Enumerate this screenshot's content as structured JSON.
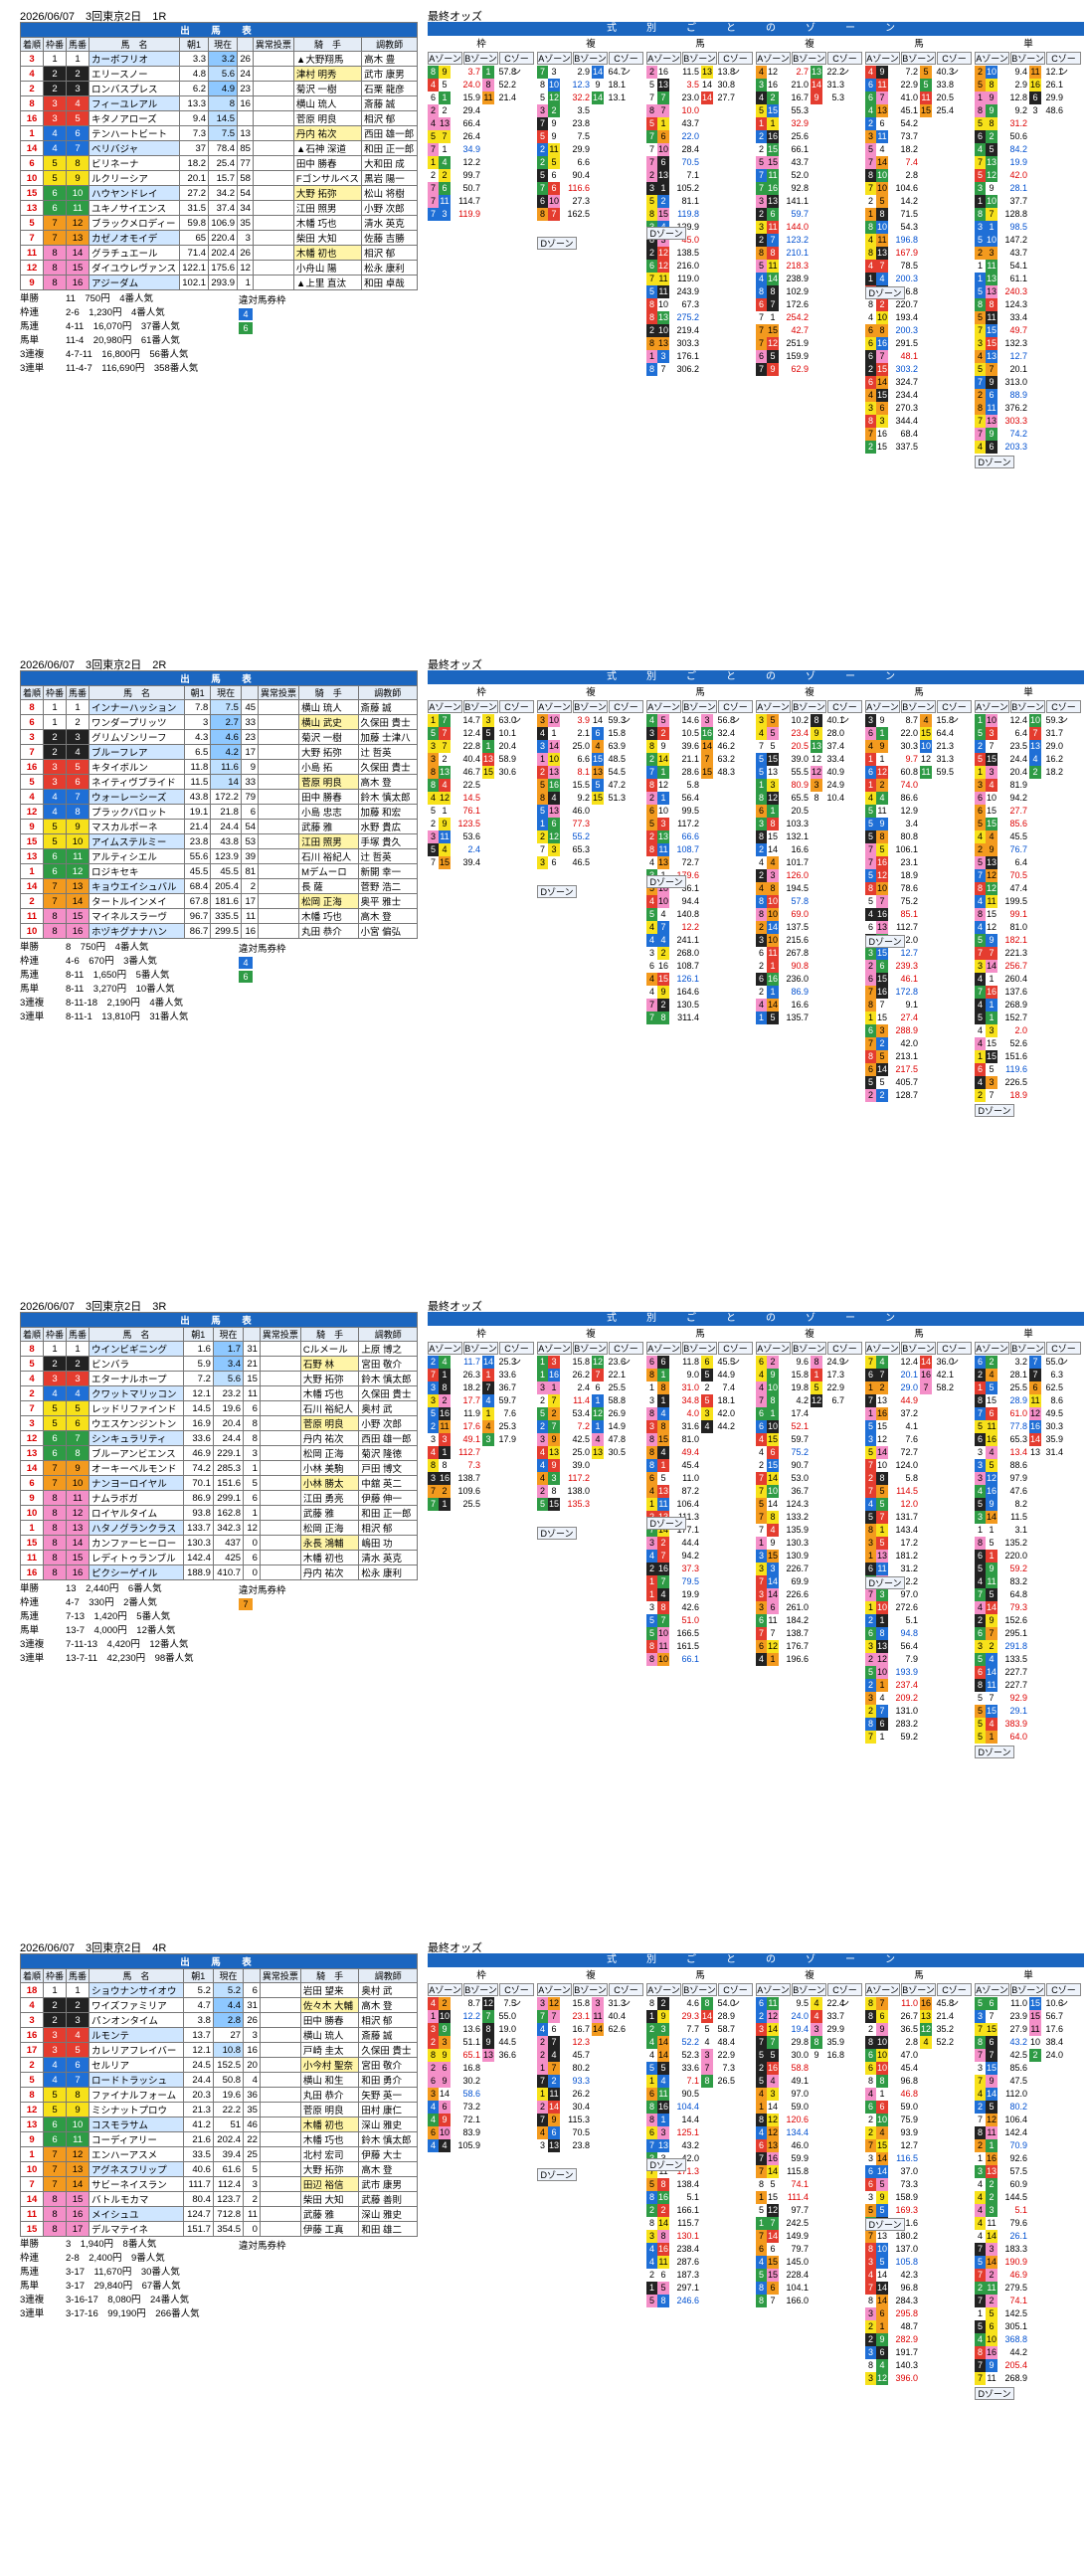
{
  "date_course": "2026/06/07　3回東京2日",
  "odds_label": "最終オッズ",
  "zone_title": "式　別　ご　と　の　ゾ　ー　ン",
  "table_title": "出　馬　表",
  "headers": {
    "arrival": "着順",
    "waku": "枠番",
    "uma": "馬番",
    "horse": "馬　名",
    "odds": "単勝オッズ",
    "first": "朝1",
    "now": "現在",
    "move": "異常投票",
    "jockey": "騎　手",
    "trainer": "調教師"
  },
  "zone_groups": [
    "枠",
    "複",
    "馬",
    "複",
    "馬",
    "単"
  ],
  "zones": {
    "a": "Aゾーン",
    "b": "Bゾーン",
    "c": "Cゾーン",
    "d": "Dゾーン"
  },
  "labels": {
    "tansho": "単勝",
    "wakuren": "枠連",
    "umaren": "馬連",
    "umatan": "馬単",
    "sanrenpuku": "3連複",
    "sanrentan": "3連単",
    "taisen": "違対馬券枠"
  },
  "races": [
    {
      "id": "1R",
      "race_no": "1R",
      "rows": [
        {
          "arr": "3",
          "w": 1,
          "u": "1",
          "name": "カーボフリオ",
          "first": "3.3",
          "now": "3.2",
          "pop": "26",
          "jockey": "▲大野翔馬",
          "trainer": "高木 豊"
        },
        {
          "arr": "4",
          "w": 2,
          "u": "2",
          "name": "エリースノー",
          "first": "4.8",
          "now": "5.6",
          "pop": "24",
          "jockey": "津村 明秀",
          "trainer": "武市 康男"
        },
        {
          "arr": "2",
          "w": 2,
          "u": "3",
          "name": "ロンバスプレス",
          "first": "6.2",
          "now": "4.9",
          "pop": "23",
          "jockey": "菊沢 一樹",
          "trainer": "石栗 龍彦"
        },
        {
          "arr": "8",
          "w": 3,
          "u": "4",
          "name": "フィーユレアル",
          "first": "13.3",
          "now": "8",
          "pop": "16",
          "jockey": "横山 琉人",
          "trainer": "斎藤 誠"
        },
        {
          "arr": "16",
          "w": 3,
          "u": "5",
          "name": "キタノアローズ",
          "first": "9.4",
          "now": "14.5",
          "pop": "",
          "jockey": "菅原 明良",
          "trainer": "相沢 郁"
        },
        {
          "arr": "1",
          "w": 4,
          "u": "6",
          "name": "テンハートビート",
          "first": "7.3",
          "now": "7.5",
          "pop": "13",
          "jockey": "丹内 祐次",
          "trainer": "西田 雄一郎"
        },
        {
          "arr": "14",
          "w": 4,
          "u": "7",
          "name": "ベリバジャ",
          "first": "37",
          "now": "78.4",
          "pop": "85",
          "jockey": "▲石神 深道",
          "trainer": "和田 正一郎"
        },
        {
          "arr": "6",
          "w": 5,
          "u": "8",
          "name": "ビリネーナ",
          "first": "18.2",
          "now": "25.4",
          "pop": "77",
          "jockey": "田中 勝春",
          "trainer": "大和田 成"
        },
        {
          "arr": "10",
          "w": 5,
          "u": "9",
          "name": "ルクリーシア",
          "first": "20.1",
          "now": "15.7",
          "pop": "58",
          "jockey": "Fゴンサルベス",
          "trainer": "黒岩 陽一"
        },
        {
          "arr": "15",
          "w": 6,
          "u": "10",
          "name": "ハウヤンドレイ",
          "first": "27.2",
          "now": "34.2",
          "pop": "54",
          "jockey": "大野 拓弥",
          "trainer": "松山 将樹"
        },
        {
          "arr": "13",
          "w": 6,
          "u": "11",
          "name": "ユキノサイエンス",
          "first": "31.5",
          "now": "37.4",
          "pop": "34",
          "jockey": "江田 照男",
          "trainer": "小野 次郎"
        },
        {
          "arr": "5",
          "w": 7,
          "u": "12",
          "name": "ブラックメロディー",
          "first": "59.8",
          "now": "106.9",
          "pop": "35",
          "jockey": "木幡 巧也",
          "trainer": "清水 英克"
        },
        {
          "arr": "7",
          "w": 7,
          "u": "13",
          "name": "カゼノオモイデ",
          "first": "65",
          "now": "220.4",
          "pop": "3",
          "jockey": "柴田 大知",
          "trainer": "佐藤 吉勝"
        },
        {
          "arr": "11",
          "w": 8,
          "u": "14",
          "name": "グラチュエール",
          "first": "71.4",
          "now": "202.4",
          "pop": "26",
          "jockey": "木幡 初也",
          "trainer": "相沢 郁"
        },
        {
          "arr": "12",
          "w": 8,
          "u": "15",
          "name": "ダイユウレヴァンス",
          "first": "122.1",
          "now": "175.6",
          "pop": "12",
          "jockey": "小舟山 陽",
          "trainer": "松永 康利"
        },
        {
          "arr": "9",
          "w": 8,
          "u": "16",
          "name": "アジーダム",
          "first": "102.1",
          "now": "293.9",
          "pop": "1",
          "jockey": "▲上里 直汰",
          "trainer": "和田 卓哉"
        }
      ],
      "results": [
        {
          "k": "単勝",
          "v": "11　750円　4番人気"
        },
        {
          "k": "枠連",
          "v": "2-6　1,230円　4番人気"
        },
        {
          "k": "馬連",
          "v": "4-11　16,070円　37番人気"
        },
        {
          "k": "馬単",
          "v": "11-4　20,980円　61番人気"
        },
        {
          "k": "3連複",
          "v": "4-7-11　16,800円　56番人気"
        },
        {
          "k": "3連単",
          "v": "11-4-7　116,690円　358番人気"
        }
      ],
      "taisen": [
        "4",
        "6"
      ]
    },
    {
      "id": "2R",
      "race_no": "2R",
      "rows": [
        {
          "arr": "8",
          "w": 1,
          "u": "1",
          "name": "インナーハッション",
          "first": "7.8",
          "now": "7.5",
          "pop": "45",
          "jockey": "横山 琉人",
          "trainer": "斎藤 誠"
        },
        {
          "arr": "6",
          "w": 1,
          "u": "2",
          "name": "ワンダープリッツ",
          "first": "3",
          "now": "2.7",
          "pop": "33",
          "jockey": "横山 武史",
          "trainer": "久保田 貴士"
        },
        {
          "arr": "3",
          "w": 2,
          "u": "3",
          "name": "グリムゾンリーフ",
          "first": "4.3",
          "now": "4.6",
          "pop": "23",
          "jockey": "菊沢 一樹",
          "trainer": "加藤 士津八"
        },
        {
          "arr": "7",
          "w": 2,
          "u": "4",
          "name": "ブルーフレア",
          "first": "6.5",
          "now": "4.2",
          "pop": "17",
          "jockey": "大野 拓弥",
          "trainer": "辻 哲英"
        },
        {
          "arr": "16",
          "w": 3,
          "u": "5",
          "name": "キタイボルン",
          "first": "11.8",
          "now": "11.6",
          "pop": "9",
          "jockey": "小島 拓",
          "trainer": "久保田 貴士"
        },
        {
          "arr": "5",
          "w": 3,
          "u": "6",
          "name": "ネイティヴブライド",
          "first": "11.5",
          "now": "14",
          "pop": "33",
          "jockey": "菅原 明良",
          "trainer": "高木 登"
        },
        {
          "arr": "4",
          "w": 4,
          "u": "7",
          "name": "ウォーレーシーズ",
          "first": "43.8",
          "now": "172.2",
          "pop": "79",
          "jockey": "田中 勝春",
          "trainer": "鈴木 慎太郎"
        },
        {
          "arr": "12",
          "w": 4,
          "u": "8",
          "name": "プラックバロット",
          "first": "19.1",
          "now": "21.8",
          "pop": "6",
          "jockey": "小島 忠志",
          "trainer": "加藤 和宏"
        },
        {
          "arr": "9",
          "w": 5,
          "u": "9",
          "name": "マスカルポーネ",
          "first": "21.4",
          "now": "24.4",
          "pop": "54",
          "jockey": "武藤 雅",
          "trainer": "水野 貴広"
        },
        {
          "arr": "15",
          "w": 5,
          "u": "10",
          "name": "アイムステルミー",
          "first": "23.8",
          "now": "43.8",
          "pop": "53",
          "jockey": "江田 照男",
          "trainer": "手塚 貴久"
        },
        {
          "arr": "13",
          "w": 6,
          "u": "11",
          "name": "アルティシエル",
          "first": "55.6",
          "now": "123.9",
          "pop": "39",
          "jockey": "石川 裕紀人",
          "trainer": "辻 哲英"
        },
        {
          "arr": "1",
          "w": 6,
          "u": "12",
          "name": "ロジキセキ",
          "first": "45.5",
          "now": "45.5",
          "pop": "81",
          "jockey": "Mデムーロ",
          "trainer": "新開 幸一"
        },
        {
          "arr": "14",
          "w": 7,
          "u": "13",
          "name": "キョウエイシュバル",
          "first": "68.4",
          "now": "205.4",
          "pop": "2",
          "jockey": "長 薩",
          "trainer": "菅野 浩二"
        },
        {
          "arr": "2",
          "w": 7,
          "u": "14",
          "name": "タートルインメイ",
          "first": "67.8",
          "now": "181.6",
          "pop": "17",
          "jockey": "松岡 正海",
          "trainer": "奥平 雅士"
        },
        {
          "arr": "11",
          "w": 8,
          "u": "15",
          "name": "マイネルスラーヴ",
          "first": "96.7",
          "now": "335.5",
          "pop": "11",
          "jockey": "木幡 巧也",
          "trainer": "高木 登"
        },
        {
          "arr": "10",
          "w": 8,
          "u": "16",
          "name": "ホヅキグナナハン",
          "first": "86.7",
          "now": "299.5",
          "pop": "16",
          "jockey": "丸田 恭介",
          "trainer": "小宮 偏弘"
        }
      ],
      "results": [
        {
          "k": "単勝",
          "v": "8　750円　4番人気"
        },
        {
          "k": "枠連",
          "v": "4-6　670円　3番人気"
        },
        {
          "k": "馬連",
          "v": "8-11　1,650円　5番人気"
        },
        {
          "k": "馬単",
          "v": "8-11　3,270円　10番人気"
        },
        {
          "k": "3連複",
          "v": "8-11-18　2,190円　4番人気"
        },
        {
          "k": "3連単",
          "v": "8-11-1　13,810円　31番人気"
        }
      ],
      "taisen": [
        "4",
        "6"
      ]
    },
    {
      "id": "3R",
      "race_no": "3R",
      "rows": [
        {
          "arr": "8",
          "w": 1,
          "u": "1",
          "name": "ウインビギニング",
          "first": "1.6",
          "now": "1.7",
          "pop": "31",
          "jockey": "Cルメール",
          "trainer": "上原 博之"
        },
        {
          "arr": "5",
          "w": 2,
          "u": "2",
          "name": "ビンバラ",
          "first": "5.9",
          "now": "3.4",
          "pop": "21",
          "jockey": "石野 林",
          "trainer": "宮田 敬介"
        },
        {
          "arr": "4",
          "w": 3,
          "u": "3",
          "name": "エターナルホープ",
          "first": "7.2",
          "now": "5.6",
          "pop": "15",
          "jockey": "大野 拓弥",
          "trainer": "鈴木 慎太郎"
        },
        {
          "arr": "2",
          "w": 4,
          "u": "4",
          "name": "クワットマリッコン",
          "first": "12.1",
          "now": "23.2",
          "pop": "11",
          "jockey": "木幡 巧也",
          "trainer": "久保田 貴士"
        },
        {
          "arr": "7",
          "w": 5,
          "u": "5",
          "name": "レッドリファインド",
          "first": "14.5",
          "now": "19.6",
          "pop": "6",
          "jockey": "石川 裕紀人",
          "trainer": "奥村 武"
        },
        {
          "arr": "3",
          "w": 5,
          "u": "6",
          "name": "ウエスケンジントン",
          "first": "16.9",
          "now": "20.4",
          "pop": "8",
          "jockey": "菅原 明良",
          "trainer": "小野 次郎"
        },
        {
          "arr": "12",
          "w": 6,
          "u": "7",
          "name": "シンキュラリティ",
          "first": "33.6",
          "now": "24.4",
          "pop": "8",
          "jockey": "丹内 祐次",
          "trainer": "西田 雄一郎"
        },
        {
          "arr": "13",
          "w": 6,
          "u": "8",
          "name": "ブルーアンビエンス",
          "first": "46.9",
          "now": "229.1",
          "pop": "3",
          "jockey": "松岡 正海",
          "trainer": "菊沢 隆徳"
        },
        {
          "arr": "14",
          "w": 7,
          "u": "9",
          "name": "オーキーベルモンド",
          "first": "74.2",
          "now": "285.3",
          "pop": "1",
          "jockey": "小林 美駒",
          "trainer": "戸田 博文"
        },
        {
          "arr": "6",
          "w": 7,
          "u": "10",
          "name": "ナンヨーロイヤル",
          "first": "70.1",
          "now": "151.6",
          "pop": "5",
          "jockey": "小林 勝太",
          "trainer": "中舘 英二"
        },
        {
          "arr": "9",
          "w": 8,
          "u": "11",
          "name": "ナムラボガ",
          "first": "86.9",
          "now": "299.1",
          "pop": "6",
          "jockey": "江田 勇亮",
          "trainer": "伊藤 伸一"
        },
        {
          "arr": "10",
          "w": 8,
          "u": "12",
          "name": "ロイヤルタイム",
          "first": "93.8",
          "now": "162.8",
          "pop": "1",
          "jockey": "武藤 雅",
          "trainer": "和田 正一郎"
        },
        {
          "arr": "1",
          "w": 8,
          "u": "13",
          "name": "ハタノグランクラス",
          "first": "133.7",
          "now": "342.3",
          "pop": "12",
          "jockey": "松岡 正海",
          "trainer": "相沢 郁"
        },
        {
          "arr": "15",
          "w": 8,
          "u": "14",
          "name": "カンファーヒーロー",
          "first": "130.3",
          "now": "437",
          "pop": "0",
          "jockey": "永長 鴻輔",
          "trainer": "嶋田 功"
        },
        {
          "arr": "11",
          "w": 8,
          "u": "15",
          "name": "レディトゥランブル",
          "first": "142.4",
          "now": "425",
          "pop": "6",
          "jockey": "木幡 初也",
          "trainer": "清水 英克"
        },
        {
          "arr": "16",
          "w": 8,
          "u": "16",
          "name": "ピクシーゲイル",
          "first": "188.9",
          "now": "410.7",
          "pop": "0",
          "jockey": "丹内 祐次",
          "trainer": "松永 康利"
        }
      ],
      "results": [
        {
          "k": "単勝",
          "v": "13　2,440円　6番人気"
        },
        {
          "k": "枠連",
          "v": "4-7　330円　2番人気"
        },
        {
          "k": "馬連",
          "v": "7-13　1,420円　5番人気"
        },
        {
          "k": "馬単",
          "v": "13-7　4,000円　12番人気"
        },
        {
          "k": "3連複",
          "v": "7-11-13　4,420円　12番人気"
        },
        {
          "k": "3連単",
          "v": "13-7-11　42,230円　98番人気"
        }
      ],
      "taisen": [
        "7"
      ]
    },
    {
      "id": "4R",
      "race_no": "4R",
      "rows": [
        {
          "arr": "18",
          "w": 1,
          "u": "1",
          "name": "ショウナンサイオウ",
          "first": "5.2",
          "now": "5.2",
          "pop": "6",
          "jockey": "岩田 望来",
          "trainer": "奥村 武"
        },
        {
          "arr": "4",
          "w": 2,
          "u": "2",
          "name": "ワイズファミリア",
          "first": "4.7",
          "now": "4.4",
          "pop": "31",
          "jockey": "佐々木 大輔",
          "trainer": "高木 登"
        },
        {
          "arr": "3",
          "w": 2,
          "u": "3",
          "name": "パンオンタイム",
          "first": "3.8",
          "now": "2.8",
          "pop": "26",
          "jockey": "田中 勝春",
          "trainer": "相沢 郁"
        },
        {
          "arr": "16",
          "w": 3,
          "u": "4",
          "name": "ルモンテ",
          "first": "13.7",
          "now": "27",
          "pop": "3",
          "jockey": "横山 琉人",
          "trainer": "斎藤 誠"
        },
        {
          "arr": "17",
          "w": 3,
          "u": "5",
          "name": "カレリアフレイバー",
          "first": "12.1",
          "now": "10.8",
          "pop": "16",
          "jockey": "戸崎 圭太",
          "trainer": "久保田 貴士"
        },
        {
          "arr": "2",
          "w": 4,
          "u": "6",
          "name": "セルリア",
          "first": "24.5",
          "now": "152.5",
          "pop": "20",
          "jockey": "小今村 聖奈",
          "trainer": "宮田 敬介"
        },
        {
          "arr": "5",
          "w": 4,
          "u": "7",
          "name": "ロードトラッシュ",
          "first": "24.4",
          "now": "50.8",
          "pop": "4",
          "jockey": "横山 和生",
          "trainer": "和田 勇介"
        },
        {
          "arr": "8",
          "w": 5,
          "u": "8",
          "name": "ファイナルフォーム",
          "first": "20.3",
          "now": "19.6",
          "pop": "36",
          "jockey": "丸田 恭介",
          "trainer": "矢野 英一"
        },
        {
          "arr": "12",
          "w": 5,
          "u": "9",
          "name": "ミシナットプロウ",
          "first": "21.3",
          "now": "22.2",
          "pop": "35",
          "jockey": "菅原 明良",
          "trainer": "田村 康仁"
        },
        {
          "arr": "13",
          "w": 6,
          "u": "10",
          "name": "コスモラサム",
          "first": "41.2",
          "now": "51",
          "pop": "46",
          "jockey": "木幡 初也",
          "trainer": "深山 雅史"
        },
        {
          "arr": "9",
          "w": 6,
          "u": "11",
          "name": "コーディアリー",
          "first": "21.6",
          "now": "202.4",
          "pop": "22",
          "jockey": "木幡 巧也",
          "trainer": "鈴木 慎太郎"
        },
        {
          "arr": "1",
          "w": 7,
          "u": "12",
          "name": "エンハーアスメ",
          "first": "33.5",
          "now": "39.4",
          "pop": "25",
          "jockey": "北村 宏司",
          "trainer": "伊藤 大士"
        },
        {
          "arr": "10",
          "w": 7,
          "u": "13",
          "name": "アグネスフリップ",
          "first": "40.6",
          "now": "61.6",
          "pop": "5",
          "jockey": "大野 拓弥",
          "trainer": "高木 登"
        },
        {
          "arr": "7",
          "w": 7,
          "u": "14",
          "name": "サビーネイスラン",
          "first": "111.7",
          "now": "112.4",
          "pop": "3",
          "jockey": "田辺 裕信",
          "trainer": "武市 康男"
        },
        {
          "arr": "14",
          "w": 8,
          "u": "15",
          "name": "バトルモカマ",
          "first": "80.4",
          "now": "123.7",
          "pop": "2",
          "jockey": "柴田 大知",
          "trainer": "武藤 善則"
        },
        {
          "arr": "11",
          "w": 8,
          "u": "16",
          "name": "メイシュユ",
          "first": "124.7",
          "now": "712.8",
          "pop": "11",
          "jockey": "武藤 雅",
          "trainer": "深山 雅史"
        },
        {
          "arr": "15",
          "w": 8,
          "u": "17",
          "name": "デルマテイネ",
          "first": "151.7",
          "now": "354.5",
          "pop": "0",
          "jockey": "伊藤 工真",
          "trainer": "和田 雄二"
        }
      ],
      "results": [
        {
          "k": "単勝",
          "v": "3　1,940円　8番人気"
        },
        {
          "k": "枠連",
          "v": "2-8　2,400円　9番人気"
        },
        {
          "k": "馬連",
          "v": "3-17　11,670円　30番人気"
        },
        {
          "k": "馬単",
          "v": "3-17　29,840円　67番人気"
        },
        {
          "k": "3連複",
          "v": "3-16-17　8,080円　24番人気"
        },
        {
          "k": "3連単",
          "v": "3-17-16　99,190円　266番人気"
        }
      ],
      "taisen": []
    }
  ]
}
